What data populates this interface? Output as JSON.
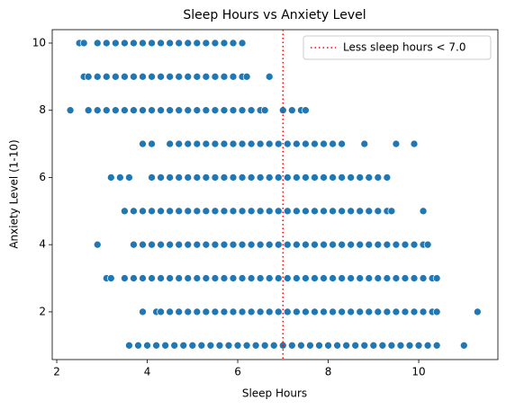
{
  "chart_data": {
    "type": "scatter",
    "title": "Sleep Hours vs Anxiety Level",
    "x_label": "Sleep Hours",
    "y_label": "Anxiety Level (1-10)",
    "xlim": [
      1.9,
      11.75
    ],
    "ylim": [
      0.58,
      10.4
    ],
    "xticks": [
      2,
      4,
      6,
      8,
      10
    ],
    "yticks": [
      2,
      4,
      6,
      8,
      10
    ],
    "color": "#1f77b4",
    "grid": false,
    "legend_position": "upper right",
    "reference_line": {
      "x": 7.0,
      "label": "Less sleep hours < 7.0",
      "color": "#ff0000",
      "style": "dotted"
    },
    "points": [
      [
        2.5,
        10
      ],
      [
        2.6,
        10
      ],
      [
        2.9,
        10
      ],
      [
        3.1,
        10
      ],
      [
        3.3,
        10
      ],
      [
        3.5,
        10
      ],
      [
        3.7,
        10
      ],
      [
        3.9,
        10
      ],
      [
        4.1,
        10
      ],
      [
        4.3,
        10
      ],
      [
        4.5,
        10
      ],
      [
        4.7,
        10
      ],
      [
        4.9,
        10
      ],
      [
        5.1,
        10
      ],
      [
        5.3,
        10
      ],
      [
        5.5,
        10
      ],
      [
        5.7,
        10
      ],
      [
        5.9,
        10
      ],
      [
        6.1,
        10
      ],
      [
        2.6,
        9
      ],
      [
        2.7,
        9
      ],
      [
        2.9,
        9
      ],
      [
        3.1,
        9
      ],
      [
        3.3,
        9
      ],
      [
        3.5,
        9
      ],
      [
        3.7,
        9
      ],
      [
        3.9,
        9
      ],
      [
        4.1,
        9
      ],
      [
        4.3,
        9
      ],
      [
        4.5,
        9
      ],
      [
        4.7,
        9
      ],
      [
        4.9,
        9
      ],
      [
        5.1,
        9
      ],
      [
        5.3,
        9
      ],
      [
        5.5,
        9
      ],
      [
        5.7,
        9
      ],
      [
        5.9,
        9
      ],
      [
        6.1,
        9
      ],
      [
        6.2,
        9
      ],
      [
        6.7,
        9
      ],
      [
        2.3,
        8
      ],
      [
        2.7,
        8
      ],
      [
        2.9,
        8
      ],
      [
        3.1,
        8
      ],
      [
        3.3,
        8
      ],
      [
        3.5,
        8
      ],
      [
        3.7,
        8
      ],
      [
        3.9,
        8
      ],
      [
        4.1,
        8
      ],
      [
        4.3,
        8
      ],
      [
        4.5,
        8
      ],
      [
        4.7,
        8
      ],
      [
        4.9,
        8
      ],
      [
        5.1,
        8
      ],
      [
        5.3,
        8
      ],
      [
        5.5,
        8
      ],
      [
        5.7,
        8
      ],
      [
        5.9,
        8
      ],
      [
        6.1,
        8
      ],
      [
        6.3,
        8
      ],
      [
        6.5,
        8
      ],
      [
        6.6,
        8
      ],
      [
        7.0,
        8
      ],
      [
        7.2,
        8
      ],
      [
        7.4,
        8
      ],
      [
        7.5,
        8
      ],
      [
        3.9,
        7
      ],
      [
        4.1,
        7
      ],
      [
        4.5,
        7
      ],
      [
        4.7,
        7
      ],
      [
        4.9,
        7
      ],
      [
        5.1,
        7
      ],
      [
        5.3,
        7
      ],
      [
        5.5,
        7
      ],
      [
        5.7,
        7
      ],
      [
        5.9,
        7
      ],
      [
        6.1,
        7
      ],
      [
        6.3,
        7
      ],
      [
        6.5,
        7
      ],
      [
        6.7,
        7
      ],
      [
        6.9,
        7
      ],
      [
        7.1,
        7
      ],
      [
        7.3,
        7
      ],
      [
        7.5,
        7
      ],
      [
        7.7,
        7
      ],
      [
        7.9,
        7
      ],
      [
        8.1,
        7
      ],
      [
        8.3,
        7
      ],
      [
        8.8,
        7
      ],
      [
        9.5,
        7
      ],
      [
        9.9,
        7
      ],
      [
        3.2,
        6
      ],
      [
        3.4,
        6
      ],
      [
        3.6,
        6
      ],
      [
        4.1,
        6
      ],
      [
        4.3,
        6
      ],
      [
        4.5,
        6
      ],
      [
        4.7,
        6
      ],
      [
        4.9,
        6
      ],
      [
        5.1,
        6
      ],
      [
        5.3,
        6
      ],
      [
        5.5,
        6
      ],
      [
        5.7,
        6
      ],
      [
        5.9,
        6
      ],
      [
        6.1,
        6
      ],
      [
        6.3,
        6
      ],
      [
        6.5,
        6
      ],
      [
        6.7,
        6
      ],
      [
        6.9,
        6
      ],
      [
        7.1,
        6
      ],
      [
        7.3,
        6
      ],
      [
        7.5,
        6
      ],
      [
        7.7,
        6
      ],
      [
        7.9,
        6
      ],
      [
        8.1,
        6
      ],
      [
        8.3,
        6
      ],
      [
        8.5,
        6
      ],
      [
        8.7,
        6
      ],
      [
        8.9,
        6
      ],
      [
        9.1,
        6
      ],
      [
        9.3,
        6
      ],
      [
        3.5,
        5
      ],
      [
        3.7,
        5
      ],
      [
        3.9,
        5
      ],
      [
        4.1,
        5
      ],
      [
        4.3,
        5
      ],
      [
        4.5,
        5
      ],
      [
        4.7,
        5
      ],
      [
        4.9,
        5
      ],
      [
        5.1,
        5
      ],
      [
        5.3,
        5
      ],
      [
        5.5,
        5
      ],
      [
        5.7,
        5
      ],
      [
        5.9,
        5
      ],
      [
        6.1,
        5
      ],
      [
        6.3,
        5
      ],
      [
        6.5,
        5
      ],
      [
        6.7,
        5
      ],
      [
        6.9,
        5
      ],
      [
        7.1,
        5
      ],
      [
        7.3,
        5
      ],
      [
        7.5,
        5
      ],
      [
        7.7,
        5
      ],
      [
        7.9,
        5
      ],
      [
        8.1,
        5
      ],
      [
        8.3,
        5
      ],
      [
        8.5,
        5
      ],
      [
        8.7,
        5
      ],
      [
        8.9,
        5
      ],
      [
        9.1,
        5
      ],
      [
        9.3,
        5
      ],
      [
        9.4,
        5
      ],
      [
        10.1,
        5
      ],
      [
        2.9,
        4
      ],
      [
        3.7,
        4
      ],
      [
        3.9,
        4
      ],
      [
        4.1,
        4
      ],
      [
        4.3,
        4
      ],
      [
        4.5,
        4
      ],
      [
        4.7,
        4
      ],
      [
        4.9,
        4
      ],
      [
        5.1,
        4
      ],
      [
        5.3,
        4
      ],
      [
        5.5,
        4
      ],
      [
        5.7,
        4
      ],
      [
        5.9,
        4
      ],
      [
        6.1,
        4
      ],
      [
        6.3,
        4
      ],
      [
        6.5,
        4
      ],
      [
        6.7,
        4
      ],
      [
        6.9,
        4
      ],
      [
        7.1,
        4
      ],
      [
        7.3,
        4
      ],
      [
        7.5,
        4
      ],
      [
        7.7,
        4
      ],
      [
        7.9,
        4
      ],
      [
        8.1,
        4
      ],
      [
        8.3,
        4
      ],
      [
        8.5,
        4
      ],
      [
        8.7,
        4
      ],
      [
        8.9,
        4
      ],
      [
        9.1,
        4
      ],
      [
        9.3,
        4
      ],
      [
        9.5,
        4
      ],
      [
        9.7,
        4
      ],
      [
        9.9,
        4
      ],
      [
        10.1,
        4
      ],
      [
        10.2,
        4
      ],
      [
        3.1,
        3
      ],
      [
        3.2,
        3
      ],
      [
        3.5,
        3
      ],
      [
        3.7,
        3
      ],
      [
        3.9,
        3
      ],
      [
        4.1,
        3
      ],
      [
        4.3,
        3
      ],
      [
        4.5,
        3
      ],
      [
        4.7,
        3
      ],
      [
        4.9,
        3
      ],
      [
        5.1,
        3
      ],
      [
        5.3,
        3
      ],
      [
        5.5,
        3
      ],
      [
        5.7,
        3
      ],
      [
        5.9,
        3
      ],
      [
        6.1,
        3
      ],
      [
        6.3,
        3
      ],
      [
        6.5,
        3
      ],
      [
        6.7,
        3
      ],
      [
        6.9,
        3
      ],
      [
        7.1,
        3
      ],
      [
        7.3,
        3
      ],
      [
        7.5,
        3
      ],
      [
        7.7,
        3
      ],
      [
        7.9,
        3
      ],
      [
        8.1,
        3
      ],
      [
        8.3,
        3
      ],
      [
        8.5,
        3
      ],
      [
        8.7,
        3
      ],
      [
        8.9,
        3
      ],
      [
        9.1,
        3
      ],
      [
        9.3,
        3
      ],
      [
        9.5,
        3
      ],
      [
        9.7,
        3
      ],
      [
        9.9,
        3
      ],
      [
        10.1,
        3
      ],
      [
        10.3,
        3
      ],
      [
        10.4,
        3
      ],
      [
        3.9,
        2
      ],
      [
        4.2,
        2
      ],
      [
        4.3,
        2
      ],
      [
        4.5,
        2
      ],
      [
        4.7,
        2
      ],
      [
        4.9,
        2
      ],
      [
        5.1,
        2
      ],
      [
        5.3,
        2
      ],
      [
        5.5,
        2
      ],
      [
        5.7,
        2
      ],
      [
        5.9,
        2
      ],
      [
        6.1,
        2
      ],
      [
        6.3,
        2
      ],
      [
        6.5,
        2
      ],
      [
        6.7,
        2
      ],
      [
        6.9,
        2
      ],
      [
        7.1,
        2
      ],
      [
        7.3,
        2
      ],
      [
        7.5,
        2
      ],
      [
        7.7,
        2
      ],
      [
        7.9,
        2
      ],
      [
        8.1,
        2
      ],
      [
        8.3,
        2
      ],
      [
        8.5,
        2
      ],
      [
        8.7,
        2
      ],
      [
        8.9,
        2
      ],
      [
        9.1,
        2
      ],
      [
        9.3,
        2
      ],
      [
        9.5,
        2
      ],
      [
        9.7,
        2
      ],
      [
        9.9,
        2
      ],
      [
        10.1,
        2
      ],
      [
        10.3,
        2
      ],
      [
        10.4,
        2
      ],
      [
        11.3,
        2
      ],
      [
        3.6,
        1
      ],
      [
        3.8,
        1
      ],
      [
        4.0,
        1
      ],
      [
        4.2,
        1
      ],
      [
        4.4,
        1
      ],
      [
        4.6,
        1
      ],
      [
        4.8,
        1
      ],
      [
        5.0,
        1
      ],
      [
        5.2,
        1
      ],
      [
        5.4,
        1
      ],
      [
        5.6,
        1
      ],
      [
        5.8,
        1
      ],
      [
        6.0,
        1
      ],
      [
        6.2,
        1
      ],
      [
        6.4,
        1
      ],
      [
        6.6,
        1
      ],
      [
        6.8,
        1
      ],
      [
        7.0,
        1
      ],
      [
        7.2,
        1
      ],
      [
        7.4,
        1
      ],
      [
        7.6,
        1
      ],
      [
        7.8,
        1
      ],
      [
        8.0,
        1
      ],
      [
        8.2,
        1
      ],
      [
        8.4,
        1
      ],
      [
        8.6,
        1
      ],
      [
        8.8,
        1
      ],
      [
        9.0,
        1
      ],
      [
        9.2,
        1
      ],
      [
        9.4,
        1
      ],
      [
        9.6,
        1
      ],
      [
        9.8,
        1
      ],
      [
        10.0,
        1
      ],
      [
        10.2,
        1
      ],
      [
        10.4,
        1
      ],
      [
        11.0,
        1
      ]
    ]
  }
}
